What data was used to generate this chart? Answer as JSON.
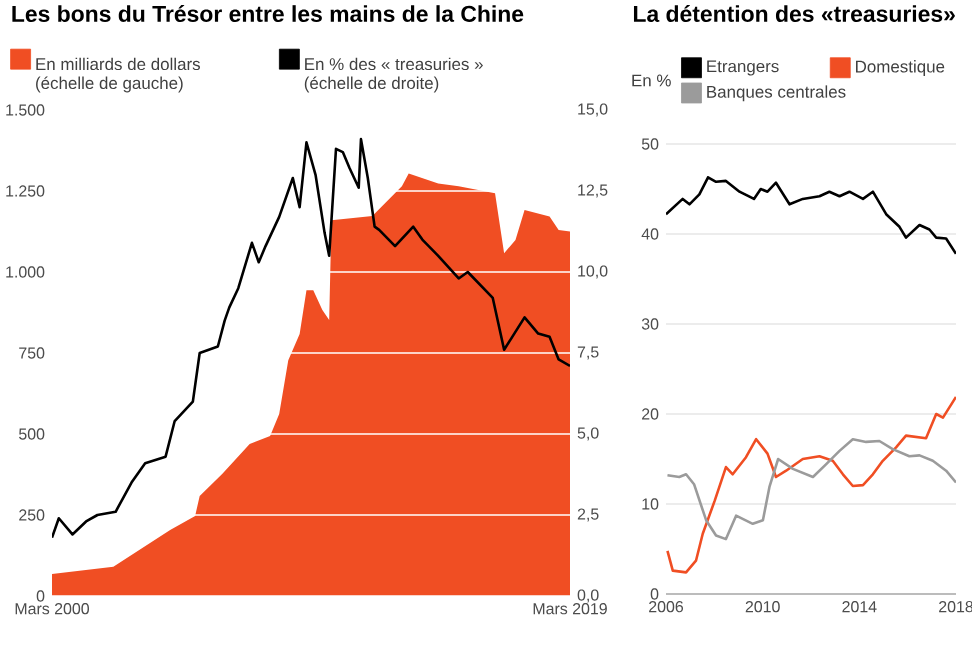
{
  "chart_data": [
    {
      "type": "area",
      "title": "Les bons du Trésor entre les mains de la Chine",
      "xlim": [
        "2000-03",
        "2019-03"
      ],
      "xticks": [
        {
          "value": "2000-03",
          "label": "Mars 2000"
        },
        {
          "value": "2019-03",
          "label": "Mars 2019"
        }
      ],
      "ylim": [
        0,
        1500
      ],
      "yticks": [
        {
          "value": 0,
          "label": "0"
        },
        {
          "value": 250,
          "label": "250"
        },
        {
          "value": 500,
          "label": "500"
        },
        {
          "value": 750,
          "label": "750"
        },
        {
          "value": 1000,
          "label": "1.000"
        },
        {
          "value": 1250,
          "label": "1.250"
        },
        {
          "value": 1500,
          "label": "1.500"
        }
      ],
      "y2lim": [
        0,
        15
      ],
      "y2ticks": [
        {
          "value": 0,
          "label": "0,0"
        },
        {
          "value": 2.5,
          "label": "2,5"
        },
        {
          "value": 5,
          "label": "5,0"
        },
        {
          "value": 7.5,
          "label": "7,5"
        },
        {
          "value": 10,
          "label": "10,0"
        },
        {
          "value": 12.5,
          "label": "12,5"
        },
        {
          "value": 15,
          "label": "15,0"
        }
      ],
      "grid": "y",
      "legend": "top",
      "series": [
        {
          "name": "En milliards de dollars (échelle de gauche)",
          "type": "area",
          "color": "#f04e23",
          "x": [
            "2000-03",
            "2002-06",
            "2004-07",
            "2005-06",
            "2005-08",
            "2006-06",
            "2007-06",
            "2008-03",
            "2008-07",
            "2008-11",
            "2009-04",
            "2009-07",
            "2009-10",
            "2010-02",
            "2010-05",
            "2010-06",
            "2011-12",
            "2013-01",
            "2013-04",
            "2014-05",
            "2015-02",
            "2016-06",
            "2016-10",
            "2017-03",
            "2017-07",
            "2018-06",
            "2018-10",
            "2019-03"
          ],
          "values": [
            68,
            90,
            204,
            247,
            309,
            377,
            469,
            494,
            562,
            728,
            809,
            944,
            944,
            883,
            852,
            1160,
            1173,
            1265,
            1304,
            1273,
            1265,
            1243,
            1058,
            1099,
            1191,
            1171,
            1130,
            1125
          ]
        },
        {
          "name": "En % des « treasuries » (échelle de droite)",
          "type": "line",
          "axis": "y2",
          "color": "#000000",
          "x": [
            "2000-03",
            "2000-06",
            "2000-12",
            "2001-06",
            "2001-11",
            "2002-07",
            "2003-02",
            "2003-08",
            "2004-05",
            "2004-09",
            "2005-05",
            "2005-08",
            "2006-04",
            "2006-07",
            "2006-09",
            "2007-01",
            "2007-07",
            "2007-10",
            "2008-01",
            "2008-07",
            "2009-01",
            "2009-04",
            "2009-07",
            "2009-11",
            "2010-03",
            "2010-05",
            "2010-08",
            "2010-11",
            "2011-02",
            "2011-06",
            "2011-07",
            "2011-10",
            "2012-01",
            "2012-03",
            "2012-10",
            "2013-06",
            "2013-10",
            "2014-05",
            "2015-02",
            "2015-06",
            "2016-05",
            "2016-10",
            "2017-07",
            "2018-01",
            "2018-06",
            "2018-10",
            "2019-03"
          ],
          "values": [
            1.8,
            2.4,
            1.9,
            2.3,
            2.5,
            2.6,
            3.5,
            4.1,
            4.3,
            5.4,
            6.0,
            7.5,
            7.7,
            8.5,
            8.9,
            9.5,
            10.9,
            10.3,
            10.8,
            11.7,
            12.9,
            12.0,
            14.0,
            13.0,
            11.2,
            10.5,
            13.8,
            13.7,
            13.2,
            12.6,
            14.1,
            12.9,
            11.4,
            11.3,
            10.8,
            11.4,
            11.0,
            10.5,
            9.8,
            10.0,
            9.2,
            7.6,
            8.6,
            8.1,
            8.0,
            7.3,
            7.1
          ]
        }
      ]
    },
    {
      "type": "line",
      "title": "La détention des «treasuries»",
      "ylabel": "En %",
      "xlim": [
        2006,
        2018
      ],
      "xticks": [
        2006,
        2010,
        2014,
        2018
      ],
      "ylim": [
        0,
        50
      ],
      "yticks": [
        0,
        10,
        20,
        30,
        40,
        50
      ],
      "grid": "y",
      "legend": "top",
      "series": [
        {
          "name": "Etrangers",
          "color": "#000000",
          "x": [
            2006.0,
            2006.69,
            2006.97,
            2007.38,
            2007.74,
            2008.07,
            2008.48,
            2009.04,
            2009.64,
            2009.92,
            2010.2,
            2010.55,
            2011.11,
            2011.66,
            2012.35,
            2012.76,
            2013.18,
            2013.59,
            2014.15,
            2014.56,
            2015.11,
            2015.66,
            2015.93,
            2016.49,
            2016.9,
            2017.18,
            2017.59,
            2018.0
          ],
          "values": [
            42.2,
            43.9,
            43.3,
            44.4,
            46.3,
            45.8,
            45.9,
            44.7,
            43.9,
            45.0,
            44.7,
            45.7,
            43.3,
            43.9,
            44.2,
            44.7,
            44.2,
            44.7,
            43.9,
            44.7,
            42.2,
            40.8,
            39.6,
            41.0,
            40.5,
            39.6,
            39.5,
            37.8
          ]
        },
        {
          "name": "Domestique",
          "color": "#f04e23",
          "x": [
            2006.06,
            2006.28,
            2006.83,
            2007.24,
            2007.52,
            2008.02,
            2008.48,
            2008.76,
            2009.31,
            2009.73,
            2010.2,
            2010.55,
            2010.97,
            2011.66,
            2012.35,
            2012.9,
            2013.32,
            2013.73,
            2014.15,
            2014.56,
            2014.97,
            2015.52,
            2015.93,
            2016.76,
            2017.18,
            2017.46,
            2018.0
          ],
          "values": [
            4.8,
            2.6,
            2.4,
            3.7,
            6.7,
            10.4,
            14.1,
            13.3,
            15.2,
            17.2,
            15.6,
            13.0,
            13.7,
            15.0,
            15.3,
            14.8,
            13.3,
            12.0,
            12.1,
            13.3,
            14.8,
            16.3,
            17.6,
            17.3,
            20.0,
            19.6,
            21.9
          ]
        },
        {
          "name": "Banques centrales",
          "color": "#9b9b9b",
          "x": [
            2006.06,
            2006.55,
            2006.83,
            2007.16,
            2007.66,
            2008.07,
            2008.48,
            2008.9,
            2009.59,
            2010.01,
            2010.28,
            2010.64,
            2011.25,
            2012.08,
            2012.62,
            2013.18,
            2013.73,
            2014.28,
            2014.83,
            2015.38,
            2016.07,
            2016.49,
            2017.04,
            2017.59,
            2018.0
          ],
          "values": [
            13.2,
            13.0,
            13.3,
            12.2,
            8.2,
            6.5,
            6.1,
            8.7,
            7.8,
            8.2,
            11.9,
            15.0,
            13.9,
            13.0,
            14.4,
            15.9,
            17.2,
            16.9,
            17.0,
            16.1,
            15.3,
            15.4,
            14.8,
            13.7,
            12.4
          ]
        }
      ]
    }
  ]
}
